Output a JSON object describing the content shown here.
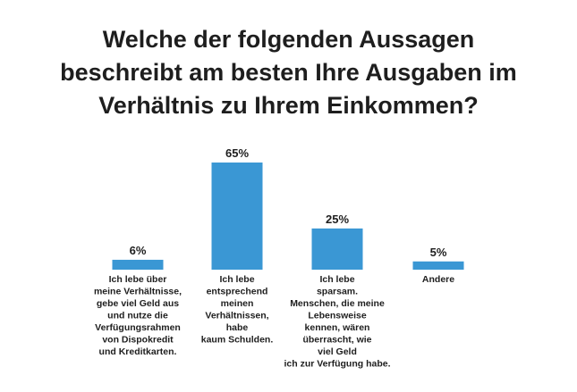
{
  "title_lines": [
    "Welche der folgenden Aussagen",
    "beschreibt am besten Ihre Ausgaben im",
    "Verhältnis zu Ihrem Einkommen?"
  ],
  "colors": {
    "bar": "#3a97d4",
    "text": "#1e1e1e",
    "background": "#ffffff"
  },
  "chart_data": {
    "type": "bar",
    "title": "Welche der folgenden Aussagen beschreibt am besten Ihre Ausgaben im Verhältnis zu Ihrem Einkommen?",
    "categories": [
      "Ich lebe über meine Verhältnisse, gebe viel Geld aus und nutze die Verfügungsrahmen von Dispokredit und Kreditkarten.",
      "Ich lebe entsprechend meinen Verhältnissen, habe kaum Schulden.",
      "Ich lebe sparsam. Menschen, die meine Lebensweise kennen, wären überrascht, wie viel Geld ich zur Verfügung habe.",
      "Andere"
    ],
    "category_lines": [
      [
        "Ich lebe über",
        "meine Verhältnisse,",
        "gebe viel Geld aus",
        "und nutze die",
        "Verfügungsrahmen",
        "von Dispokredit",
        "und Kreditkarten."
      ],
      [
        "Ich lebe",
        "entsprechend",
        "meinen",
        "Verhältnissen,",
        "habe",
        "kaum Schulden."
      ],
      [
        "Ich lebe",
        "sparsam.",
        "Menschen, die meine",
        "Lebensweise",
        "kennen, wären",
        "überrascht, wie",
        "viel Geld",
        "ich zur Verfügung habe."
      ],
      [
        "Andere"
      ]
    ],
    "values": [
      6,
      65,
      25,
      5
    ],
    "value_labels": [
      "6%",
      "65%",
      "25%",
      "5%"
    ],
    "unit": "%",
    "xlabel": "",
    "ylabel": "",
    "ylim": [
      0,
      100
    ],
    "grid": false,
    "legend": "none"
  }
}
